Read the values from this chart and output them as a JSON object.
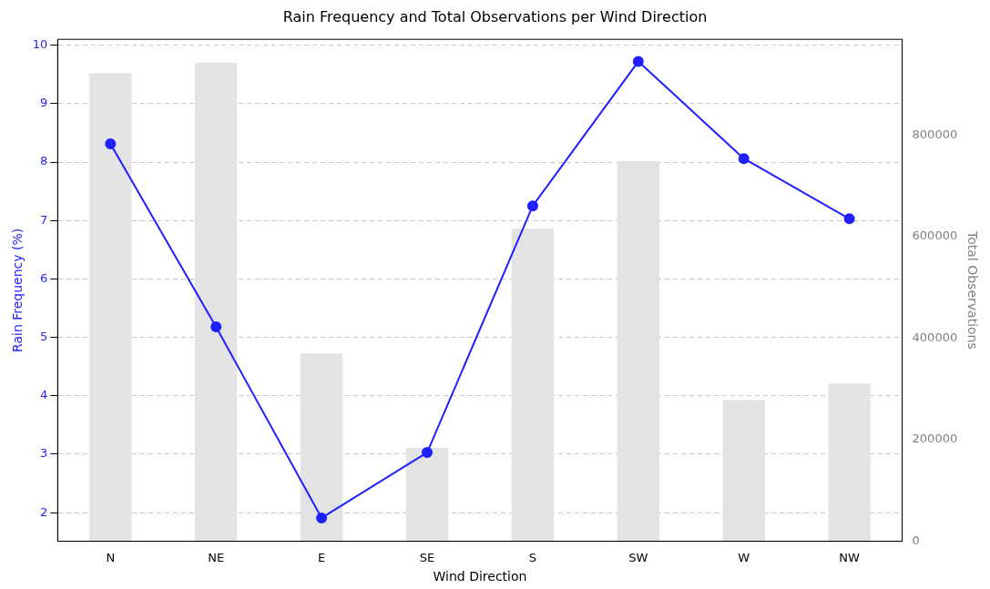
{
  "chart_data": {
    "type": "line",
    "title": "Rain Frequency and Total Observations per Wind Direction",
    "xlabel": "Wind Direction",
    "ylabel": "Rain Frequency (%)",
    "y2label": "Total Observations",
    "categories": [
      "N",
      "NE",
      "E",
      "SE",
      "S",
      "SW",
      "W",
      "NW"
    ],
    "series": [
      {
        "type": "bar",
        "axis": "y2",
        "color": "#e3e3e3",
        "values": [
          922000,
          943000,
          370000,
          184000,
          616000,
          749000,
          278000,
          311000
        ]
      },
      {
        "color": "#1f1fff",
        "values": [
          8.31,
          5.18,
          1.91,
          3.03,
          7.25,
          9.72,
          8.06,
          7.03
        ]
      }
    ],
    "ylim": [
      1.51,
      10.1
    ],
    "yticks": [
      2,
      3,
      4,
      5,
      6,
      7,
      8,
      9,
      10
    ],
    "y2lim": [
      0,
      989000
    ],
    "y2ticks": [
      0,
      200000,
      400000,
      600000,
      800000
    ],
    "grid": "y",
    "legend": false,
    "marker": "circle",
    "line_style": "solid"
  }
}
